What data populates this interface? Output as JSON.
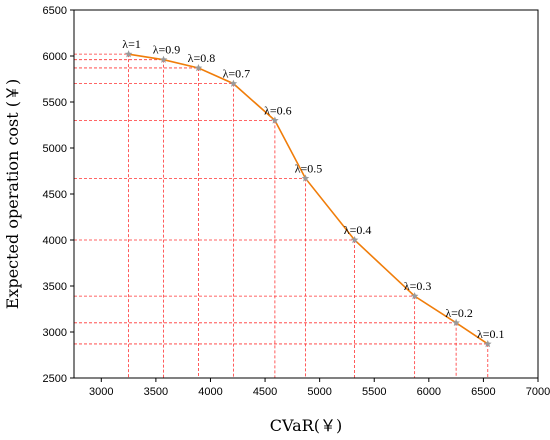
{
  "chart_data": {
    "type": "line",
    "title": "",
    "xlabel": "CVaR(￥)",
    "ylabel": "Expected operation cost (￥)",
    "xlim": [
      2750,
      7000
    ],
    "ylim": [
      2500,
      6500
    ],
    "xticks": [
      "3000",
      "3500",
      "4000",
      "4500",
      "5000",
      "5500",
      "6000",
      "6500",
      "7000"
    ],
    "yticks": [
      "2500",
      "3000",
      "3500",
      "4000",
      "4500",
      "5000",
      "5500",
      "6000",
      "6500"
    ],
    "grid": false,
    "legend": "none",
    "colors": {
      "line": "#f07d0a",
      "marker": "#9a9a9a",
      "guide": "#ff3333"
    },
    "series": [
      {
        "x": [
          3250,
          3570,
          3890,
          4210,
          4590,
          4870,
          5320,
          5870,
          6250,
          6540
        ],
        "y": [
          6020,
          5960,
          5870,
          5700,
          5300,
          4670,
          4000,
          3390,
          3100,
          2870
        ],
        "point_labels": [
          "λ=1",
          "λ=0.9",
          "λ=0.8",
          "λ=0.7",
          "λ=0.6",
          "λ=0.5",
          "λ=0.4",
          "λ=0.3",
          "λ=0.2",
          "λ=0.1"
        ]
      }
    ]
  }
}
